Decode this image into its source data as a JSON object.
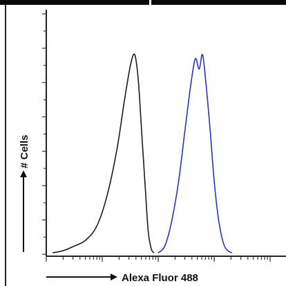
{
  "chart_data": {
    "type": "line",
    "title": "",
    "xlabel": "Alexa Fluor 488",
    "ylabel": "# Cells",
    "x_scale": "log",
    "xlim": [
      1,
      100000
    ],
    "ylim": [
      0,
      1
    ],
    "grid": false,
    "legend": "none",
    "series": [
      {
        "color": "#1a1a1a",
        "x": [
          1.3,
          2,
          3,
          5,
          8,
          12,
          18,
          25,
          32,
          38,
          44,
          50,
          58,
          66,
          75,
          84
        ],
        "y": [
          0.01,
          0.02,
          0.04,
          0.07,
          0.14,
          0.28,
          0.5,
          0.75,
          0.92,
          0.97,
          0.85,
          0.62,
          0.35,
          0.12,
          0.03,
          0.01
        ]
      },
      {
        "color": "#2233cc",
        "x": [
          100,
          130,
          170,
          230,
          300,
          380,
          460,
          540,
          620,
          720,
          850,
          1000,
          1200,
          1450,
          1750,
          2100
        ],
        "y": [
          0.01,
          0.04,
          0.15,
          0.35,
          0.6,
          0.82,
          0.95,
          0.9,
          0.97,
          0.82,
          0.6,
          0.36,
          0.17,
          0.06,
          0.02,
          0.01
        ]
      }
    ]
  }
}
